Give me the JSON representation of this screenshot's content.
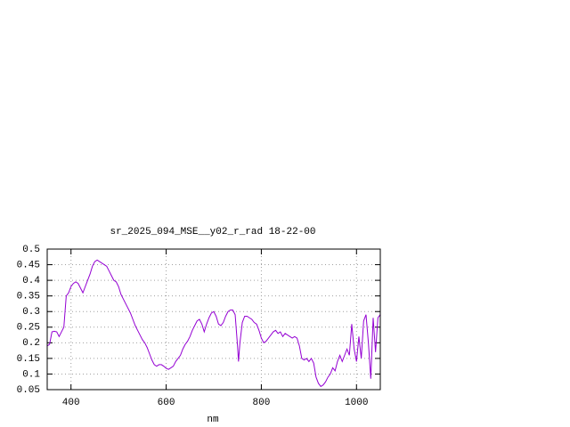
{
  "chart_data": {
    "type": "line",
    "title": "sr_2025_094_MSE__y02_r_rad 18-22-00",
    "x_label": "nm",
    "x": [
      350,
      355,
      360,
      365,
      370,
      375,
      380,
      385,
      390,
      395,
      400,
      405,
      410,
      415,
      420,
      425,
      430,
      435,
      440,
      445,
      450,
      455,
      460,
      465,
      470,
      475,
      480,
      485,
      490,
      495,
      500,
      505,
      510,
      515,
      520,
      525,
      530,
      535,
      540,
      545,
      550,
      555,
      560,
      565,
      570,
      575,
      580,
      585,
      590,
      595,
      600,
      605,
      610,
      615,
      620,
      625,
      630,
      635,
      640,
      645,
      650,
      655,
      660,
      665,
      670,
      675,
      680,
      685,
      690,
      695,
      700,
      705,
      710,
      715,
      720,
      725,
      730,
      735,
      740,
      745,
      750,
      752,
      755,
      760,
      765,
      770,
      775,
      780,
      785,
      790,
      795,
      800,
      805,
      810,
      815,
      820,
      825,
      830,
      835,
      840,
      845,
      850,
      855,
      860,
      865,
      870,
      875,
      880,
      885,
      890,
      895,
      900,
      905,
      910,
      915,
      920,
      925,
      930,
      935,
      940,
      945,
      950,
      955,
      960,
      965,
      970,
      975,
      980,
      985,
      990,
      995,
      1000,
      1005,
      1010,
      1015,
      1020,
      1025,
      1030,
      1035,
      1040,
      1045,
      1050
    ],
    "series": [
      {
        "name": "sr_2025_094_MSE__y02_r_rad",
        "color": "#9400d3",
        "values": [
          0.19,
          0.195,
          0.235,
          0.237,
          0.235,
          0.22,
          0.235,
          0.25,
          0.35,
          0.36,
          0.38,
          0.39,
          0.395,
          0.39,
          0.375,
          0.36,
          0.38,
          0.4,
          0.42,
          0.445,
          0.46,
          0.465,
          0.46,
          0.455,
          0.45,
          0.445,
          0.43,
          0.415,
          0.4,
          0.395,
          0.38,
          0.355,
          0.34,
          0.325,
          0.31,
          0.295,
          0.275,
          0.255,
          0.24,
          0.225,
          0.21,
          0.2,
          0.185,
          0.165,
          0.145,
          0.13,
          0.125,
          0.13,
          0.13,
          0.125,
          0.118,
          0.115,
          0.12,
          0.125,
          0.14,
          0.15,
          0.16,
          0.18,
          0.195,
          0.205,
          0.22,
          0.24,
          0.255,
          0.27,
          0.275,
          0.26,
          0.235,
          0.26,
          0.28,
          0.295,
          0.3,
          0.285,
          0.26,
          0.255,
          0.265,
          0.285,
          0.3,
          0.305,
          0.305,
          0.29,
          0.19,
          0.14,
          0.2,
          0.265,
          0.285,
          0.285,
          0.28,
          0.275,
          0.265,
          0.26,
          0.24,
          0.215,
          0.2,
          0.205,
          0.215,
          0.225,
          0.235,
          0.24,
          0.23,
          0.235,
          0.22,
          0.23,
          0.225,
          0.22,
          0.215,
          0.22,
          0.215,
          0.19,
          0.15,
          0.145,
          0.15,
          0.14,
          0.15,
          0.135,
          0.09,
          0.07,
          0.06,
          0.065,
          0.075,
          0.09,
          0.1,
          0.12,
          0.11,
          0.14,
          0.16,
          0.14,
          0.16,
          0.18,
          0.16,
          0.26,
          0.18,
          0.14,
          0.22,
          0.15,
          0.27,
          0.29,
          0.2,
          0.085,
          0.28,
          0.17,
          0.28,
          0.29
        ]
      }
    ],
    "xlim": [
      350,
      1050
    ],
    "ylim": [
      0.05,
      0.5
    ],
    "xticks": [
      400,
      600,
      800,
      1000
    ],
    "yticks": [
      0.05,
      0.1,
      0.15,
      0.2,
      0.25,
      0.3,
      0.35,
      0.4,
      0.45,
      0.5
    ],
    "grid": true
  }
}
